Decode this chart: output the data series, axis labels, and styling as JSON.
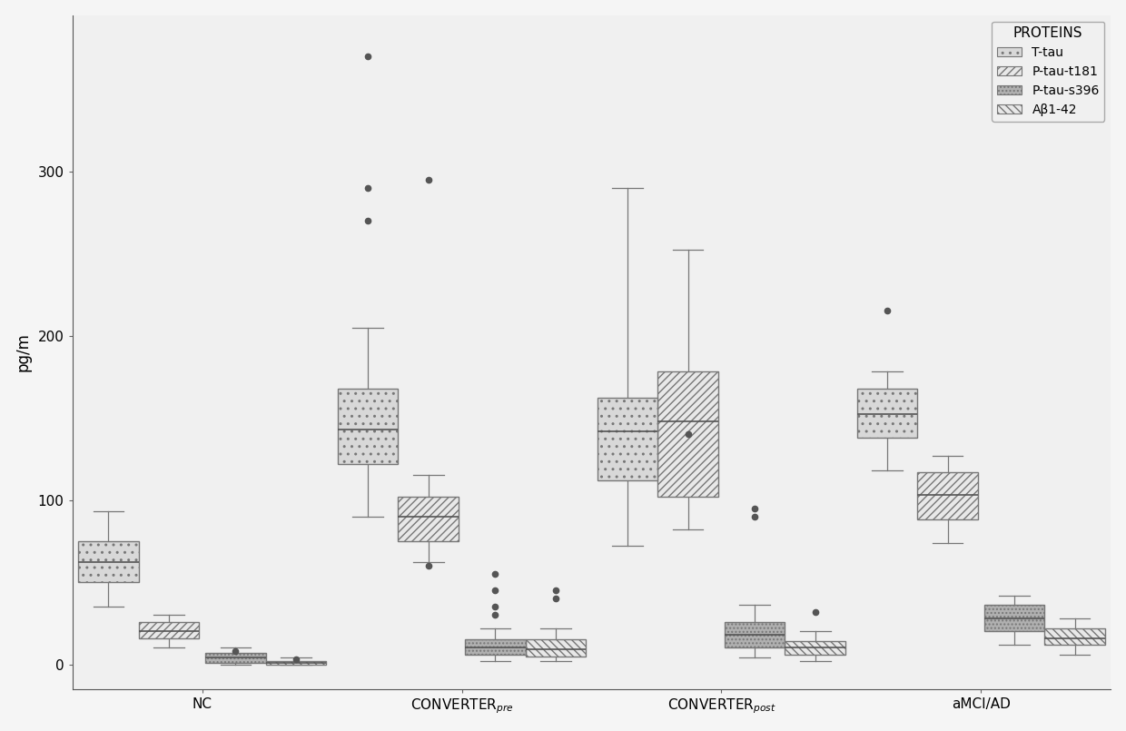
{
  "title": "",
  "ylabel": "pg/m",
  "xlabel": "",
  "groups": [
    "NC",
    "CONVERTER_pre",
    "CONVERTER_post",
    "aMCI/AD"
  ],
  "group_labels": [
    "NC",
    "CONVERTER$_{pre}$",
    "CONVERTER$_{post}$",
    "aMCI/AD"
  ],
  "proteins": [
    "T-tau",
    "P-tau-t181",
    "P-tau-s396",
    "Aβ1-42"
  ],
  "ylim": [
    -15,
    395
  ],
  "yticks": [
    0,
    100,
    200,
    300
  ],
  "background_color": "#f0f0f0",
  "box_width": 0.28,
  "group_centers": [
    0.5,
    1.7,
    2.9,
    4.1
  ],
  "boxes": {
    "NC": {
      "T-tau": {
        "q1": 50,
        "median": 62,
        "q3": 75,
        "whislo": 35,
        "whishi": 93,
        "fliers": []
      },
      "P-tau-t181": {
        "q1": 16,
        "median": 20,
        "q3": 26,
        "whislo": 10,
        "whishi": 30,
        "fliers": []
      },
      "P-tau-s396": {
        "q1": 1,
        "median": 4,
        "q3": 7,
        "whislo": 0,
        "whishi": 10,
        "fliers": [
          8
        ]
      },
      "Aβ1-42": {
        "q1": 0,
        "median": 1,
        "q3": 2,
        "whislo": 0,
        "whishi": 4,
        "fliers": [
          3
        ]
      }
    },
    "CONVERTER_pre": {
      "T-tau": {
        "q1": 122,
        "median": 143,
        "q3": 168,
        "whislo": 90,
        "whishi": 205,
        "fliers": [
          270,
          290,
          370
        ]
      },
      "P-tau-t181": {
        "q1": 75,
        "median": 90,
        "q3": 102,
        "whislo": 62,
        "whishi": 115,
        "fliers": [
          60,
          295
        ]
      },
      "P-tau-s396": {
        "q1": 6,
        "median": 10,
        "q3": 15,
        "whislo": 2,
        "whishi": 22,
        "fliers": [
          30,
          35,
          45,
          55
        ]
      },
      "Aβ1-42": {
        "q1": 5,
        "median": 9,
        "q3": 15,
        "whislo": 2,
        "whishi": 22,
        "fliers": [
          40,
          45
        ]
      }
    },
    "CONVERTER_post": {
      "T-tau": {
        "q1": 112,
        "median": 142,
        "q3": 162,
        "whislo": 72,
        "whishi": 290,
        "fliers": []
      },
      "P-tau-t181": {
        "q1": 102,
        "median": 148,
        "q3": 178,
        "whislo": 82,
        "whishi": 252,
        "fliers": [
          140
        ]
      },
      "P-tau-s396": {
        "q1": 10,
        "median": 18,
        "q3": 26,
        "whislo": 4,
        "whishi": 36,
        "fliers": [
          90,
          95
        ]
      },
      "Aβ1-42": {
        "q1": 6,
        "median": 10,
        "q3": 14,
        "whislo": 2,
        "whishi": 20,
        "fliers": [
          32
        ]
      }
    },
    "aMCI/AD": {
      "T-tau": {
        "q1": 138,
        "median": 152,
        "q3": 168,
        "whislo": 118,
        "whishi": 178,
        "fliers": [
          215
        ]
      },
      "P-tau-t181": {
        "q1": 88,
        "median": 103,
        "q3": 117,
        "whislo": 74,
        "whishi": 127,
        "fliers": []
      },
      "P-tau-s396": {
        "q1": 20,
        "median": 28,
        "q3": 36,
        "whislo": 12,
        "whishi": 42,
        "fliers": []
      },
      "Aβ1-42": {
        "q1": 12,
        "median": 16,
        "q3": 22,
        "whislo": 6,
        "whishi": 28,
        "fliers": []
      }
    }
  },
  "hatch_patterns": [
    "..",
    "////",
    "....",
    "\\\\\\\\"
  ],
  "facecolors": [
    "#d8d8d8",
    "#e8e8e8",
    "#b0b0b0",
    "#e8e8e8"
  ],
  "edgecolors": [
    "#777777",
    "#777777",
    "#777777",
    "#777777"
  ],
  "median_colors": [
    "#555555",
    "#555555",
    "#555555",
    "#555555"
  ],
  "legend_title": "PROTEINS",
  "legend_title_fontsize": 11,
  "legend_fontsize": 10,
  "axis_fontsize": 12,
  "tick_fontsize": 11,
  "xlim": [
    -0.1,
    4.7
  ]
}
